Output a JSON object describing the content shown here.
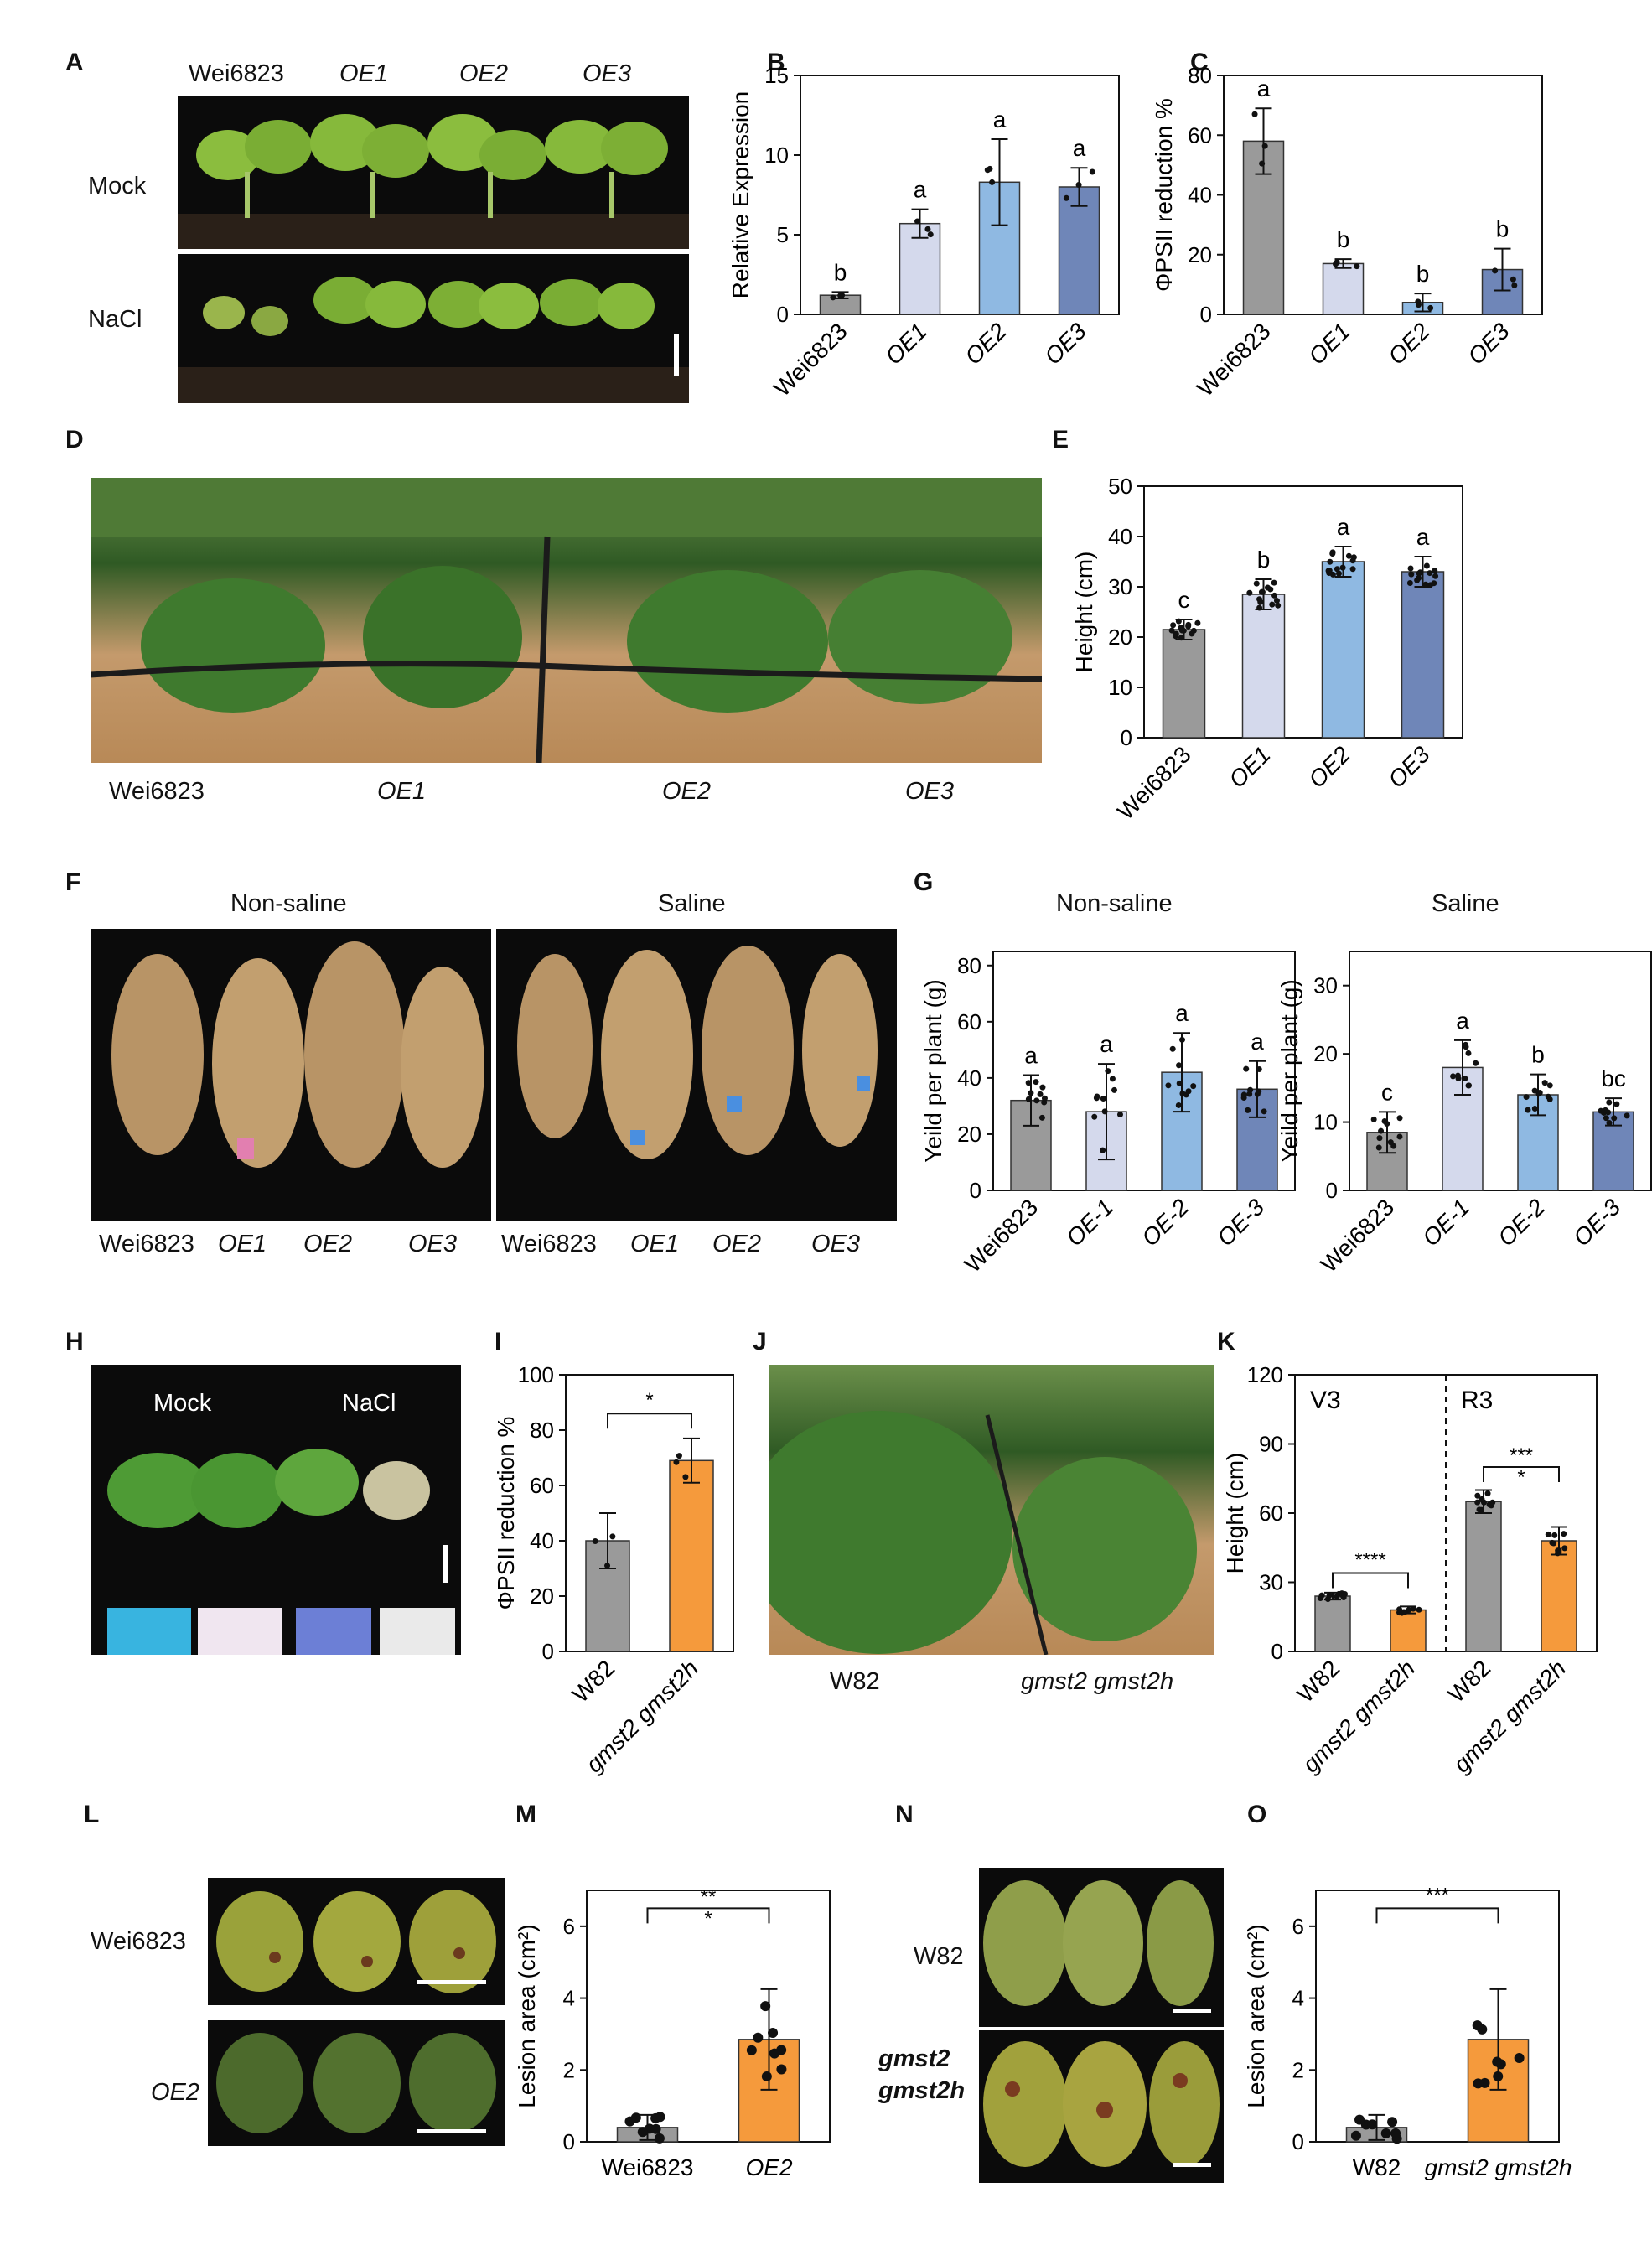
{
  "panels": {
    "A": {
      "label": "A",
      "cols": [
        "Wei6823",
        "OE1",
        "OE2",
        "OE3"
      ],
      "rows": [
        "Mock",
        "NaCl"
      ]
    },
    "B": {
      "label": "B"
    },
    "C": {
      "label": "C"
    },
    "D": {
      "label": "D",
      "captions": [
        "Wei6823",
        "OE1",
        "OE2",
        "OE3"
      ]
    },
    "E": {
      "label": "E"
    },
    "F": {
      "label": "F",
      "left_title": "Non-saline",
      "right_title": "Saline",
      "left_captions": [
        "Wei6823",
        "OE1",
        "OE2",
        "OE3"
      ],
      "right_captions": [
        "Wei6823",
        "OE1",
        "OE2",
        "OE3"
      ]
    },
    "G": {
      "label": "G",
      "left_title": "Non-saline",
      "right_title": "Saline"
    },
    "H": {
      "label": "H",
      "treatments": [
        "Mock",
        "NaCl"
      ]
    },
    "I": {
      "label": "I"
    },
    "J": {
      "label": "J",
      "captions": [
        "W82",
        "gmst2 gmst2h"
      ]
    },
    "K": {
      "label": "K"
    },
    "L": {
      "label": "L",
      "rows": [
        "Wei6823",
        "OE2"
      ]
    },
    "M": {
      "label": "M"
    },
    "N": {
      "label": "N",
      "rows": [
        "W82",
        "gmst2",
        "gmst2h"
      ]
    },
    "O": {
      "label": "O"
    }
  },
  "colors": {
    "wt_gray": "#9a9a9a",
    "oe1": "#d4d9ec",
    "oe2": "#8fb9e2",
    "oe3": "#6f86b8",
    "mutant_orange": "#f59a3c"
  },
  "chart_data": [
    {
      "id": "B",
      "type": "bar",
      "categories": [
        "Wei6823",
        "OE1",
        "OE2",
        "OE3"
      ],
      "values": [
        1.2,
        5.7,
        8.3,
        8.0
      ],
      "errors": [
        0.2,
        0.9,
        2.7,
        1.2
      ],
      "letters": [
        "b",
        "a",
        "a",
        "a"
      ],
      "ylabel": "Relative Expression",
      "ylim": [
        0,
        15
      ],
      "yticks": [
        0,
        5,
        10,
        15
      ],
      "italic_categories": [
        false,
        true,
        true,
        true
      ]
    },
    {
      "id": "C",
      "type": "bar",
      "categories": [
        "Wei6823",
        "OE1",
        "OE2",
        "OE3"
      ],
      "values": [
        58,
        17,
        4,
        15
      ],
      "errors": [
        11,
        1.5,
        3,
        7
      ],
      "letters": [
        "a",
        "b",
        "b",
        "b"
      ],
      "ylabel": "ΦPSII reduction %",
      "ylim": [
        0,
        80
      ],
      "yticks": [
        0,
        20,
        40,
        60,
        80
      ],
      "italic_categories": [
        false,
        true,
        true,
        true
      ]
    },
    {
      "id": "E",
      "type": "bar",
      "categories": [
        "Wei6823",
        "OE1",
        "OE2",
        "OE3"
      ],
      "values": [
        21.5,
        28.5,
        35,
        33
      ],
      "errors": [
        2,
        3,
        3,
        3
      ],
      "letters": [
        "c",
        "b",
        "a",
        "a"
      ],
      "ylabel": "Height (cm)",
      "ylim": [
        0,
        50
      ],
      "yticks": [
        0,
        10,
        20,
        30,
        40,
        50
      ],
      "italic_categories": [
        false,
        true,
        true,
        true
      ]
    },
    {
      "id": "G1",
      "type": "bar",
      "title": "Non-saline",
      "categories": [
        "Wei6823",
        "OE-1",
        "OE-2",
        "OE-3"
      ],
      "values": [
        32,
        28,
        42,
        36
      ],
      "errors": [
        9,
        17,
        14,
        10
      ],
      "letters": [
        "a",
        "a",
        "a",
        "a"
      ],
      "ylabel": "Yeild per plant (g)",
      "ylim": [
        0,
        85
      ],
      "yticks": [
        0,
        20,
        40,
        60,
        80
      ],
      "italic_categories": [
        false,
        true,
        true,
        true
      ]
    },
    {
      "id": "G2",
      "type": "bar",
      "title": "Saline",
      "categories": [
        "Wei6823",
        "OE-1",
        "OE-2",
        "OE-3"
      ],
      "values": [
        8.5,
        18,
        14,
        11.5
      ],
      "errors": [
        3,
        4,
        3,
        2
      ],
      "letters": [
        "c",
        "a",
        "b",
        "bc"
      ],
      "ylabel": "Yeild per plant (g)",
      "ylim": [
        0,
        35
      ],
      "yticks": [
        0,
        10,
        20,
        30
      ],
      "italic_categories": [
        false,
        true,
        true,
        true
      ]
    },
    {
      "id": "I",
      "type": "bar",
      "categories": [
        "W82",
        "gmst2 gmst2h"
      ],
      "values": [
        40,
        69
      ],
      "errors": [
        10,
        8
      ],
      "significance": "*",
      "ylabel": "ΦPSII reduction %",
      "ylim": [
        0,
        100
      ],
      "yticks": [
        0,
        20,
        40,
        60,
        80,
        100
      ],
      "italic_categories": [
        false,
        true
      ]
    },
    {
      "id": "K",
      "type": "bar",
      "groups": [
        "V3",
        "R3"
      ],
      "categories": [
        "W82",
        "gmst2 gmst2h",
        "W82",
        "gmst2 gmst2h"
      ],
      "values": [
        24,
        18,
        65,
        48
      ],
      "errors": [
        1.5,
        1.5,
        5,
        6
      ],
      "significance": [
        "****",
        "***\n*"
      ],
      "ylabel": "Height (cm)",
      "ylim": [
        0,
        120
      ],
      "yticks": [
        0,
        30,
        60,
        90,
        120
      ],
      "italic_categories": [
        false,
        true,
        false,
        true
      ]
    },
    {
      "id": "M",
      "type": "bar",
      "categories": [
        "Wei6823",
        "OE2"
      ],
      "values": [
        0.4,
        2.85
      ],
      "errors": [
        0.35,
        1.4
      ],
      "significance": "**\n*",
      "ylabel": "Lesion area (cm²)",
      "ylim": [
        0,
        7
      ],
      "yticks": [
        0,
        2,
        4,
        6
      ],
      "italic_categories": [
        false,
        true
      ]
    },
    {
      "id": "O",
      "type": "bar",
      "categories": [
        "W82",
        "gmst2 gmst2h"
      ],
      "values": [
        0.4,
        2.85
      ],
      "errors": [
        0.35,
        1.4
      ],
      "significance": "***",
      "ylabel": "Lesion area (cm²)",
      "ylim": [
        0,
        7
      ],
      "yticks": [
        0,
        2,
        4,
        6
      ],
      "italic_categories": [
        false,
        true
      ]
    }
  ]
}
